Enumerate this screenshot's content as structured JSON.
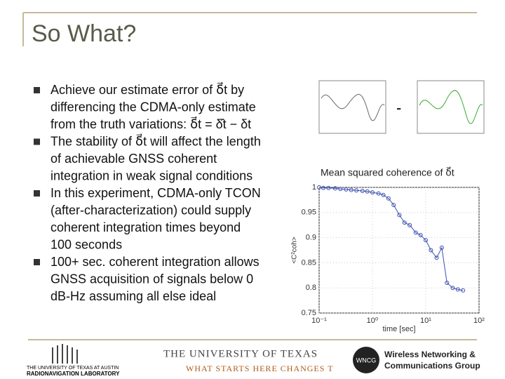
{
  "header": {
    "title": "So What?"
  },
  "bullets": [
    [
      "Achieve our estimate error of δ⃗t by",
      "differencing the CDMA-only estimate",
      "from the truth variations: δ⃗t = δ̂t − δt"
    ],
    [
      "The stability of δ⃗t will affect the length",
      "of achievable GNSS coherent",
      "integration in weak signal conditions"
    ],
    [
      "In this experiment, CDMA-only TCON",
      "(after-characterization) could supply",
      "coherent integration times beyond",
      "100 seconds"
    ],
    [
      "100+ sec. coherent integration allows",
      "GNSS acquisition of signals below 0",
      "dB-Hz assuming all else ideal"
    ]
  ],
  "minus": "-",
  "chart_data": {
    "type": "line",
    "title": "Mean squared coherence of δ⃗t",
    "xlabel": "time [sec]",
    "ylabel": "<C²coh>",
    "x": [
      0.1,
      0.12,
      0.15,
      0.2,
      0.25,
      0.32,
      0.4,
      0.5,
      0.65,
      0.8,
      1,
      1.3,
      1.6,
      2,
      2.5,
      3.2,
      4,
      5,
      6.5,
      8,
      10,
      12.5,
      16,
      20,
      25,
      32,
      40,
      50
    ],
    "series": [
      {
        "color": "#3a4fb0",
        "values": [
          1,
          0.999,
          0.999,
          0.998,
          0.997,
          0.996,
          0.995,
          0.994,
          0.993,
          0.992,
          0.99,
          0.988,
          0.985,
          0.978,
          0.965,
          0.945,
          0.93,
          0.925,
          0.91,
          0.905,
          0.895,
          0.875,
          0.86,
          0.88,
          0.81,
          0.8,
          0.797,
          0.795
        ]
      }
    ],
    "xlog": true,
    "xlim": [
      0.1,
      100
    ],
    "ylim": [
      0.75,
      1
    ],
    "xticks": [
      {
        "value": 0.1,
        "label": "10⁻¹"
      },
      {
        "value": 1,
        "label": "10⁰"
      },
      {
        "value": 10,
        "label": "10¹"
      },
      {
        "value": 100,
        "label": "10²"
      }
    ],
    "yticks": [
      0.75,
      0.8,
      0.85,
      0.9,
      0.95,
      1
    ],
    "grid": true
  },
  "footer": {
    "ut_top": "THE UNIVERSITY OF TEXAS",
    "ut_bottom": "WHAT STARTS HERE CHANGES T",
    "rnl_top": "THE UNIVERSITY OF TEXAS AT AUSTIN",
    "rnl_bottom": "RADIONAVIGATION LABORATORY",
    "wncg_logo": "WNCG",
    "wncg_1": "Wireless Networking &",
    "wncg_2": "Communications Group"
  }
}
